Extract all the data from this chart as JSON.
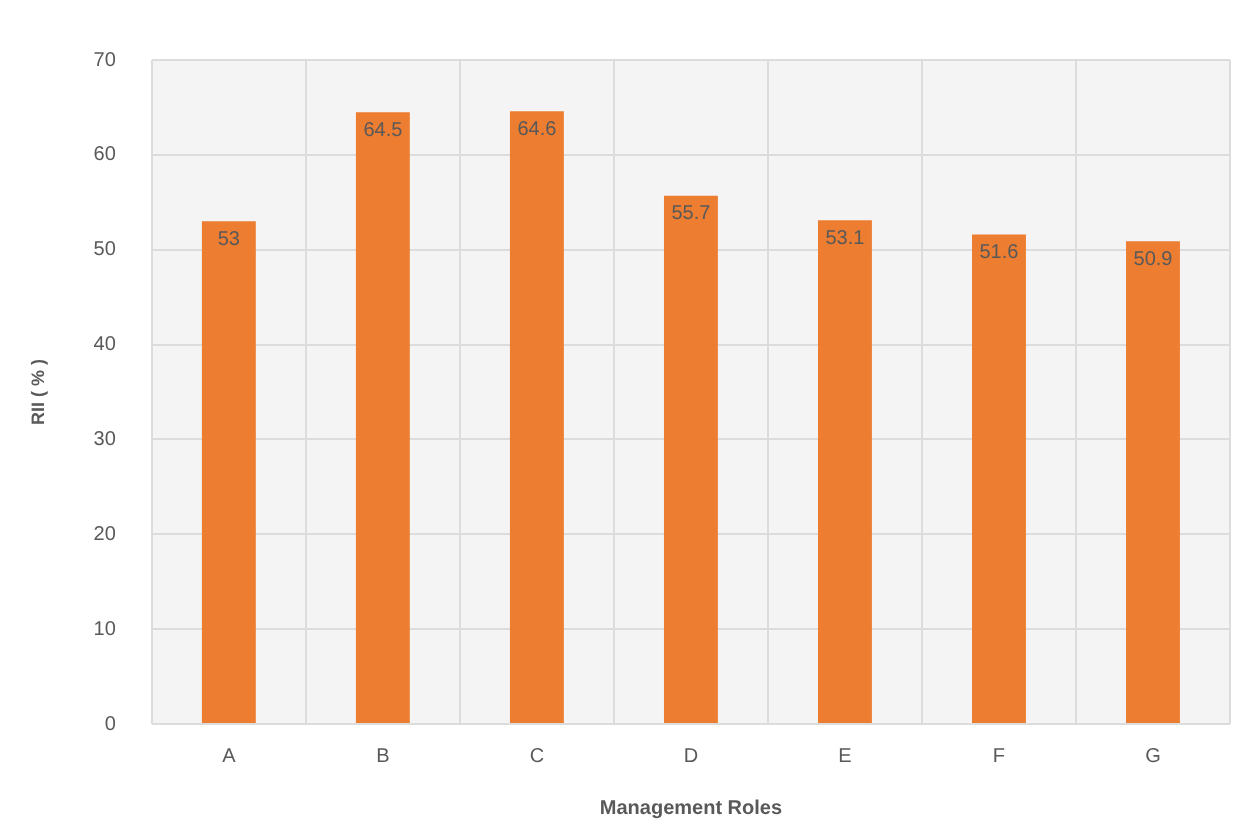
{
  "chart_data": {
    "type": "bar",
    "xlabel": "Management Roles",
    "ylabel": "RII ( % )",
    "categories": [
      "A",
      "B",
      "C",
      "D",
      "E",
      "F",
      "G"
    ],
    "values": [
      53,
      64.5,
      64.6,
      55.7,
      53.1,
      51.6,
      50.9
    ],
    "color": "#ed7d31",
    "ylim": [
      0,
      70
    ],
    "yticks": [
      0,
      10,
      20,
      30,
      40,
      50,
      60,
      70
    ],
    "grid": true,
    "data_labels": true
  }
}
